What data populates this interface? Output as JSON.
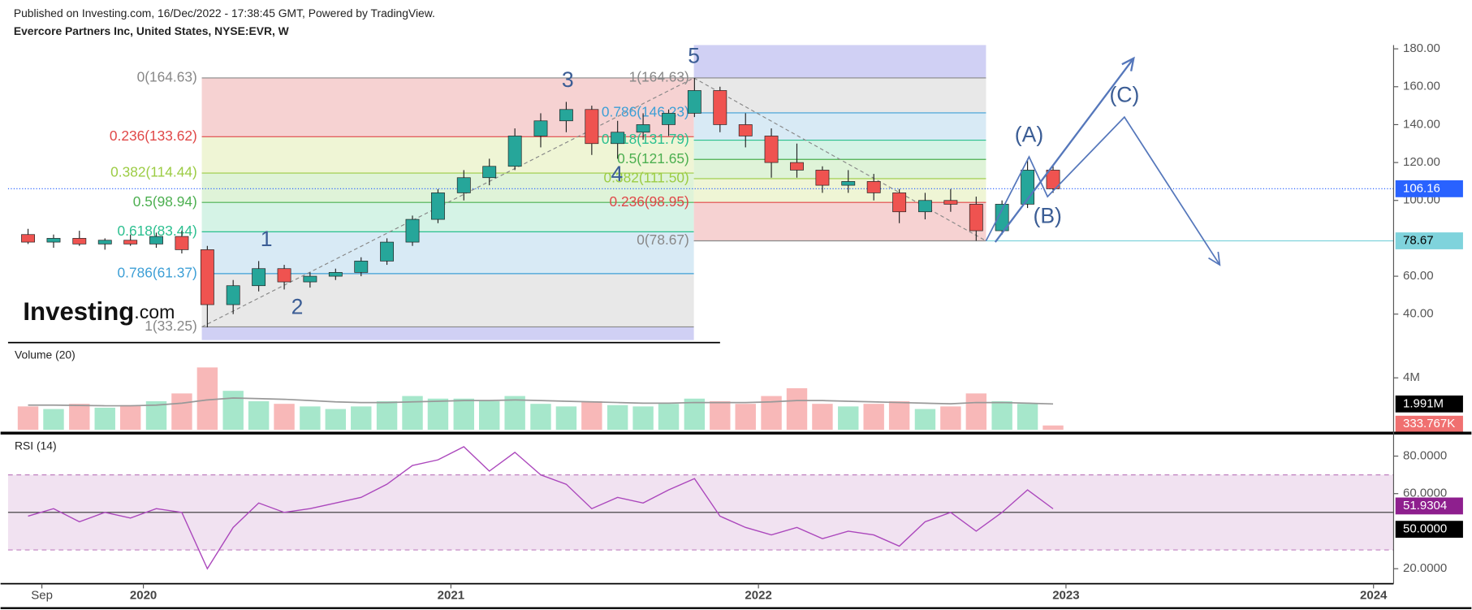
{
  "header": {
    "published": "Published on Investing.com, 16/Dec/2022 - 17:38:45 GMT, Powered by TradingView.",
    "symbol": "Evercore Partners Inc, United States, NYSE:EVR, W"
  },
  "logo": {
    "name": "Investing",
    "suffix": ".com"
  },
  "chart_data": [
    {
      "type": "candlestick",
      "x": [
        2019.625,
        2019.708,
        2019.792,
        2019.875,
        2019.958,
        2020.042,
        2020.125,
        2020.208,
        2020.292,
        2020.375,
        2020.458,
        2020.542,
        2020.625,
        2020.708,
        2020.792,
        2020.875,
        2020.958,
        2021.042,
        2021.125,
        2021.208,
        2021.292,
        2021.375,
        2021.458,
        2021.542,
        2021.625,
        2021.708,
        2021.792,
        2021.875,
        2021.958,
        2022.042,
        2022.125,
        2022.208,
        2022.292,
        2022.375,
        2022.458,
        2022.542,
        2022.625,
        2022.708,
        2022.792,
        2022.875,
        2022.958
      ],
      "open": [
        82,
        78,
        80,
        77,
        79,
        77,
        81,
        74,
        45,
        55,
        64,
        57,
        60,
        62,
        68,
        78,
        90,
        104,
        112,
        118,
        134,
        142,
        148,
        130,
        136,
        140,
        146,
        158,
        140,
        134,
        120,
        116,
        108,
        110,
        104,
        94,
        100,
        98,
        84,
        98,
        116
      ],
      "high": [
        85,
        82,
        84,
        80,
        82,
        83,
        84,
        76,
        58,
        68,
        66,
        62,
        64,
        70,
        80,
        92,
        106,
        116,
        122,
        138,
        146,
        152,
        150,
        142,
        146,
        148,
        164.63,
        160,
        146,
        138,
        130,
        118,
        116,
        114,
        106,
        104,
        106,
        102,
        100,
        122,
        118
      ],
      "low": [
        77,
        75,
        76,
        74,
        76,
        75,
        72,
        33,
        40,
        52,
        53,
        54,
        58,
        60,
        66,
        76,
        88,
        100,
        108,
        116,
        128,
        136,
        124,
        122,
        132,
        134,
        144,
        136,
        128,
        112,
        112,
        104,
        104,
        100,
        88,
        90,
        94,
        78.67,
        82,
        96,
        104
      ],
      "close": [
        78,
        80,
        77,
        79,
        77,
        81,
        74,
        45,
        55,
        64,
        57,
        60,
        62,
        68,
        78,
        90,
        104,
        112,
        118,
        134,
        142,
        148,
        130,
        136,
        140,
        146,
        158,
        140,
        134,
        120,
        116,
        108,
        110,
        104,
        94,
        100,
        98,
        84,
        98,
        116,
        106.16
      ],
      "up_color": "#26a69a",
      "down_color": "#ef5350",
      "xlim": [
        2019.56,
        2024.05
      ],
      "ylim": [
        25,
        182
      ],
      "yticks": [
        {
          "value": 40,
          "label": "40.00"
        },
        {
          "value": 60,
          "label": "60.00"
        },
        {
          "value": 100,
          "label": "100.00"
        },
        {
          "value": 120,
          "label": "120.00"
        },
        {
          "value": 140,
          "label": "140.00"
        },
        {
          "value": 160,
          "label": "160.00"
        },
        {
          "value": 180,
          "label": "180.00"
        }
      ],
      "price_lines": [
        {
          "value": 106.16,
          "color": "#2962ff",
          "style": "dotted"
        },
        {
          "value": 78.67,
          "color": "#7fd3dc",
          "style": "solid"
        }
      ],
      "fibs": [
        {
          "x": [
            2020.19,
            2021.79
          ],
          "extension": "below",
          "levels": [
            {
              "value": 164.63,
              "label": "0(164.63)",
              "color": "#888888"
            },
            {
              "value": 133.62,
              "label": "0.236(133.62)",
              "color": "#e04848"
            },
            {
              "value": 114.44,
              "label": "0.382(114.44)",
              "color": "#9ccc44"
            },
            {
              "value": 98.94,
              "label": "0.5(98.94)",
              "color": "#4caf50"
            },
            {
              "value": 83.44,
              "label": "0.618(83.44)",
              "color": "#2bbf8f"
            },
            {
              "value": 61.37,
              "label": "0.786(61.37)",
              "color": "#3d9fd6"
            },
            {
              "value": 33.25,
              "label": "1(33.25)",
              "color": "#888888"
            }
          ],
          "fills": [
            "#f6d2d2",
            "#eff5d5",
            "#dff3d8",
            "#d5f3e6",
            "#d8eaf5",
            "#e8e8e8"
          ]
        },
        {
          "x": [
            2021.79,
            2022.74
          ],
          "extension": "above",
          "levels": [
            {
              "value": 164.63,
              "label": "1(164.63)",
              "color": "#888888"
            },
            {
              "value": 146.23,
              "label": "0.786(146.23)",
              "color": "#3d9fd6"
            },
            {
              "value": 131.79,
              "label": "0.618(131.79)",
              "color": "#2bbf8f"
            },
            {
              "value": 121.65,
              "label": "0.5(121.65)",
              "color": "#4caf50"
            },
            {
              "value": 111.5,
              "label": "0.382(111.50)",
              "color": "#9ccc44"
            },
            {
              "value": 98.95,
              "label": "0.236(98.95)",
              "color": "#e04848"
            },
            {
              "value": 78.67,
              "label": "0(78.67)",
              "color": "#888888"
            }
          ],
          "fills": [
            "#e8e8e8",
            "#d8eaf5",
            "#d5f3e6",
            "#dff3d8",
            "#eff5d5",
            "#f6d2d2"
          ]
        }
      ],
      "waves": [
        {
          "label": "1",
          "x": 2020.4,
          "y": 68,
          "position": "above"
        },
        {
          "label": "2",
          "x": 2020.5,
          "y": 54,
          "position": "below"
        },
        {
          "label": "3",
          "x": 2021.38,
          "y": 152,
          "position": "above"
        },
        {
          "label": "4",
          "x": 2021.54,
          "y": 124,
          "position": "below"
        },
        {
          "label": "5",
          "x": 2021.79,
          "y": 164.63,
          "position": "above"
        },
        {
          "label": "(A)",
          "x": 2022.88,
          "y": 123,
          "position": "above"
        },
        {
          "label": "(B)",
          "x": 2022.94,
          "y": 102,
          "position": "below"
        },
        {
          "label": "(C)",
          "x": 2023.19,
          "y": 144,
          "position": "above"
        }
      ],
      "projections": [
        {
          "x": [
            2022.77,
            2023.22
          ],
          "y": [
            78,
            175
          ],
          "width": 2
        },
        {
          "x": [
            2022.74,
            2022.88,
            2022.94,
            2023.19,
            2023.5
          ],
          "y": [
            78.67,
            123,
            102,
            144,
            66
          ],
          "width": 1.5
        }
      ]
    },
    {
      "type": "bar",
      "title": "Volume (20)",
      "x": [
        2019.625,
        2019.708,
        2019.792,
        2019.875,
        2019.958,
        2020.042,
        2020.125,
        2020.208,
        2020.292,
        2020.375,
        2020.458,
        2020.542,
        2020.625,
        2020.708,
        2020.792,
        2020.875,
        2020.958,
        2021.042,
        2021.125,
        2021.208,
        2021.292,
        2021.375,
        2021.458,
        2021.542,
        2021.625,
        2021.708,
        2021.792,
        2021.875,
        2021.958,
        2022.042,
        2022.125,
        2022.208,
        2022.292,
        2022.375,
        2022.458,
        2022.542,
        2022.625,
        2022.708,
        2022.792,
        2022.875,
        2022.958
      ],
      "values": [
        1800000,
        1600000,
        2000000,
        1700000,
        1900000,
        2200000,
        2800000,
        4800000,
        3000000,
        2200000,
        2000000,
        1800000,
        1600000,
        1800000,
        2200000,
        2600000,
        2400000,
        2400000,
        2200000,
        2600000,
        2000000,
        1800000,
        2200000,
        1900000,
        1800000,
        2000000,
        2400000,
        2200000,
        2000000,
        2600000,
        3200000,
        2000000,
        1800000,
        2000000,
        2200000,
        1600000,
        1800000,
        2800000,
        2200000,
        2000000,
        333767
      ],
      "ma": [
        1900000,
        1900000,
        1880000,
        1850000,
        1850000,
        1900000,
        2050000,
        2300000,
        2450000,
        2400000,
        2350000,
        2250000,
        2150000,
        2100000,
        2100000,
        2150000,
        2200000,
        2250000,
        2250000,
        2300000,
        2250000,
        2200000,
        2150000,
        2100000,
        2050000,
        2050000,
        2100000,
        2100000,
        2100000,
        2150000,
        2250000,
        2250000,
        2200000,
        2150000,
        2100000,
        2050000,
        2000000,
        2100000,
        2100000,
        2050000,
        1991000
      ],
      "up_color": "#a6e7cb",
      "down_color": "#f8b8b8",
      "ma_color": "#999999",
      "ylim": [
        0,
        6500000
      ],
      "yticks": [
        {
          "value": 4000000,
          "label": "4M"
        }
      ],
      "tags": [
        {
          "value": 1991000,
          "label": "1.991M",
          "color": "#000000"
        },
        {
          "value": 333767,
          "label": "333.767K",
          "color": "#f07070"
        }
      ]
    },
    {
      "type": "line",
      "title": "RSI (14)",
      "x": [
        2019.625,
        2019.708,
        2019.792,
        2019.875,
        2019.958,
        2020.042,
        2020.125,
        2020.208,
        2020.292,
        2020.375,
        2020.458,
        2020.542,
        2020.625,
        2020.708,
        2020.792,
        2020.875,
        2020.958,
        2021.042,
        2021.125,
        2021.208,
        2021.292,
        2021.375,
        2021.458,
        2021.542,
        2021.625,
        2021.708,
        2021.792,
        2021.875,
        2021.958,
        2022.042,
        2022.125,
        2022.208,
        2022.292,
        2022.375,
        2022.458,
        2022.542,
        2022.625,
        2022.708,
        2022.792,
        2022.875,
        2022.958
      ],
      "values": [
        48,
        52,
        45,
        50,
        47,
        52,
        50,
        20,
        42,
        55,
        50,
        52,
        55,
        58,
        65,
        75,
        78,
        85,
        72,
        82,
        70,
        65,
        52,
        58,
        55,
        62,
        68,
        48,
        42,
        38,
        42,
        36,
        40,
        38,
        32,
        45,
        50,
        40,
        50,
        62,
        51.9304
      ],
      "color": "#ab47bc",
      "band": [
        30,
        70
      ],
      "midline": 50,
      "xlim": [
        2019.56,
        2024.05
      ],
      "ylim": [
        12,
        90.5
      ],
      "yticks": [
        {
          "value": 20,
          "label": "20.0000"
        },
        {
          "value": 60,
          "label": "60.0000"
        },
        {
          "value": 80,
          "label": "80.0000"
        }
      ],
      "tags": [
        {
          "value": 51.9304,
          "color": "#8e1f8e"
        },
        {
          "value": 50,
          "label": "50.0000",
          "color": "#000000"
        }
      ],
      "xticks": [
        {
          "value": 2019.67,
          "label": "Sep"
        },
        2020,
        2021,
        2022,
        2023,
        2024
      ]
    }
  ]
}
